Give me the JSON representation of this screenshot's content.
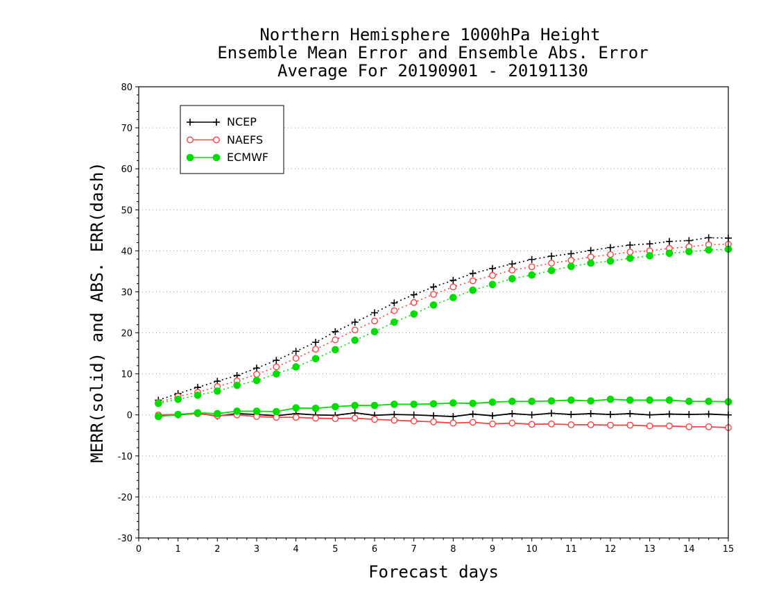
{
  "chart_data": {
    "type": "line",
    "title": [
      "Northern Hemisphere 1000hPa Height",
      "Ensemble Mean Error and Ensemble Abs. Error",
      "Average For 20190901 - 20191130"
    ],
    "xlabel": "Forecast days",
    "ylabel": "MERR(solid) and ABS. ERR(dash)",
    "xlim": [
      0,
      15
    ],
    "ylim": [
      -30,
      80
    ],
    "xticks": [
      0,
      1,
      2,
      3,
      4,
      5,
      6,
      7,
      8,
      9,
      10,
      11,
      12,
      13,
      14,
      15
    ],
    "yticks": [
      -30,
      -20,
      -10,
      0,
      10,
      20,
      30,
      40,
      50,
      60,
      70,
      80
    ],
    "grid": "horizontal dotted",
    "legend_position": "top-left",
    "x": [
      0.5,
      1,
      1.5,
      2,
      2.5,
      3,
      3.5,
      4,
      4.5,
      5,
      5.5,
      6,
      6.5,
      7,
      7.5,
      8,
      8.5,
      9,
      9.5,
      10,
      10.5,
      11,
      11.5,
      12,
      12.5,
      13,
      13.5,
      14,
      14.5,
      15
    ],
    "series": [
      {
        "name": "NCEP",
        "color": "#000000",
        "marker": "plus",
        "merr": [
          -0.2,
          0.0,
          0.4,
          -0.3,
          0.3,
          0.1,
          -0.2,
          0.3,
          0.0,
          -0.1,
          0.5,
          -0.1,
          0.1,
          0.0,
          -0.2,
          -0.4,
          0.2,
          -0.2,
          0.3,
          0.0,
          0.4,
          0.1,
          0.3,
          0.1,
          0.3,
          0.0,
          0.2,
          0.1,
          0.2,
          0.0
        ],
        "abs_err": [
          3.6,
          5.2,
          6.7,
          8.2,
          9.6,
          11.4,
          13.3,
          15.5,
          17.7,
          20.3,
          22.6,
          24.9,
          27.3,
          29.3,
          31.2,
          32.8,
          34.5,
          35.7,
          36.8,
          37.9,
          38.7,
          39.3,
          40.1,
          40.8,
          41.4,
          41.7,
          42.3,
          42.5,
          43.2,
          43.1
        ]
      },
      {
        "name": "NAEFS",
        "color": "#ff4040",
        "marker": "open-circle",
        "merr": [
          0.0,
          0.1,
          0.3,
          -0.2,
          0.0,
          -0.4,
          -0.6,
          -0.6,
          -0.8,
          -0.9,
          -0.8,
          -1.1,
          -1.3,
          -1.5,
          -1.7,
          -2.0,
          -1.8,
          -2.2,
          -2.0,
          -2.3,
          -2.2,
          -2.4,
          -2.4,
          -2.5,
          -2.5,
          -2.7,
          -2.7,
          -2.9,
          -2.9,
          -3.1
        ],
        "abs_err": [
          3.0,
          4.5,
          5.5,
          6.9,
          8.3,
          9.9,
          11.7,
          13.8,
          16.0,
          18.3,
          20.7,
          22.9,
          25.4,
          27.4,
          29.4,
          31.2,
          32.7,
          34.0,
          35.3,
          36.1,
          37.0,
          37.7,
          38.5,
          39.1,
          39.7,
          40.0,
          40.6,
          41.0,
          41.5,
          41.6
        ]
      },
      {
        "name": "ECMWF",
        "color": "#00dd00",
        "marker": "filled-circle",
        "merr": [
          -0.4,
          0.1,
          0.5,
          0.3,
          0.9,
          0.9,
          0.8,
          1.7,
          1.6,
          2.0,
          2.3,
          2.3,
          2.6,
          2.6,
          2.7,
          2.9,
          2.8,
          3.1,
          3.3,
          3.3,
          3.4,
          3.6,
          3.4,
          3.8,
          3.6,
          3.6,
          3.6,
          3.3,
          3.3,
          3.2
        ],
        "abs_err": [
          2.8,
          3.8,
          4.8,
          5.8,
          7.2,
          8.4,
          10.0,
          11.7,
          13.7,
          15.9,
          18.2,
          20.3,
          22.6,
          24.6,
          26.8,
          28.6,
          30.4,
          31.8,
          33.2,
          34.1,
          35.2,
          36.2,
          37.0,
          37.5,
          38.2,
          38.8,
          39.4,
          39.8,
          40.2,
          40.4
        ]
      }
    ]
  }
}
